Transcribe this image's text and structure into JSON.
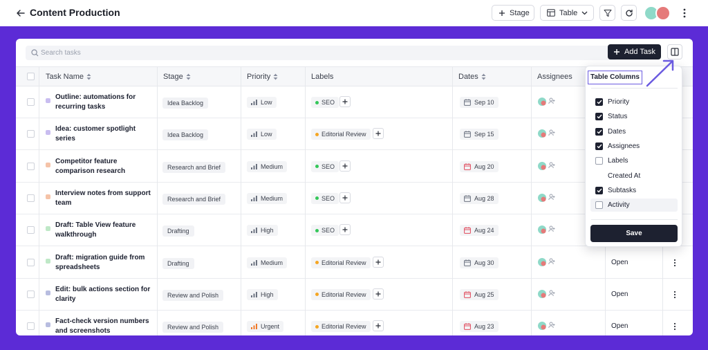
{
  "header": {
    "title": "Content Production",
    "stage_label": "Stage",
    "view_label": "Table"
  },
  "toolbar": {
    "search_placeholder": "Search tasks",
    "add_task_label": "Add Task"
  },
  "columns": {
    "task_name": "Task Name",
    "stage": "Stage",
    "priority": "Priority",
    "labels": "Labels",
    "dates": "Dates",
    "assignees": "Assignees"
  },
  "rows": [
    {
      "name": "Outline: automations for recurring tasks",
      "dot": "#c9bdf0",
      "stage": "Idea Backlog",
      "priority": "Low",
      "label": "SEO",
      "label_color": "#34c759",
      "date": "Sep 10",
      "date_color": "#6b7280",
      "status": ""
    },
    {
      "name": "Idea: customer spotlight series",
      "dot": "#c9bdf0",
      "stage": "Idea Backlog",
      "priority": "Low",
      "label": "Editorial Review",
      "label_color": "#f5a623",
      "date": "Sep 15",
      "date_color": "#6b7280",
      "status": ""
    },
    {
      "name": "Competitor feature comparison research",
      "dot": "#f5c3a8",
      "stage": "Research and Brief",
      "priority": "Medium",
      "label": "SEO",
      "label_color": "#34c759",
      "date": "Aug 20",
      "date_color": "#e0485a",
      "status": ""
    },
    {
      "name": "Interview notes from support team",
      "dot": "#f5c3a8",
      "stage": "Research and Brief",
      "priority": "Medium",
      "label": "SEO",
      "label_color": "#34c759",
      "date": "Aug 28",
      "date_color": "#6b7280",
      "status": ""
    },
    {
      "name": "Draft: Table View feature walkthrough",
      "dot": "#bfe8c7",
      "stage": "Drafting",
      "priority": "High",
      "label": "SEO",
      "label_color": "#34c759",
      "date": "Aug 24",
      "date_color": "#e0485a",
      "status": ""
    },
    {
      "name": "Draft: migration guide from spreadsheets",
      "dot": "#bfe8c7",
      "stage": "Drafting",
      "priority": "Medium",
      "label": "Editorial Review",
      "label_color": "#f5a623",
      "date": "Aug 30",
      "date_color": "#6b7280",
      "status": "Open"
    },
    {
      "name": "Edit: bulk actions section for clarity",
      "dot": "#b8bde0",
      "stage": "Review and Polish",
      "priority": "High",
      "label": "Editorial Review",
      "label_color": "#f5a623",
      "date": "Aug 25",
      "date_color": "#e0485a",
      "status": "Open"
    },
    {
      "name": "Fact-check version numbers and screenshots",
      "dot": "#b8bde0",
      "stage": "Review and Polish",
      "priority": "Urgent",
      "label": "Editorial Review",
      "label_color": "#f5a623",
      "date": "Aug 23",
      "date_color": "#e0485a",
      "status": "Open"
    }
  ],
  "table_columns_menu": {
    "title": "Table Columns",
    "options": [
      {
        "label": "Priority",
        "state": "on"
      },
      {
        "label": "Status",
        "state": "on"
      },
      {
        "label": "Dates",
        "state": "on"
      },
      {
        "label": "Assignees",
        "state": "on"
      },
      {
        "label": "Labels",
        "state": "off"
      },
      {
        "label": "Created At",
        "state": "blank"
      },
      {
        "label": "Subtasks",
        "state": "on"
      },
      {
        "label": "Activity",
        "state": "off"
      }
    ],
    "save_label": "Save"
  },
  "colors": {
    "accent_purple": "#5c2bd6",
    "primary_dark": "#1d2130",
    "overdue_red": "#e0485a",
    "urgent_orange": "#f07a2a"
  }
}
